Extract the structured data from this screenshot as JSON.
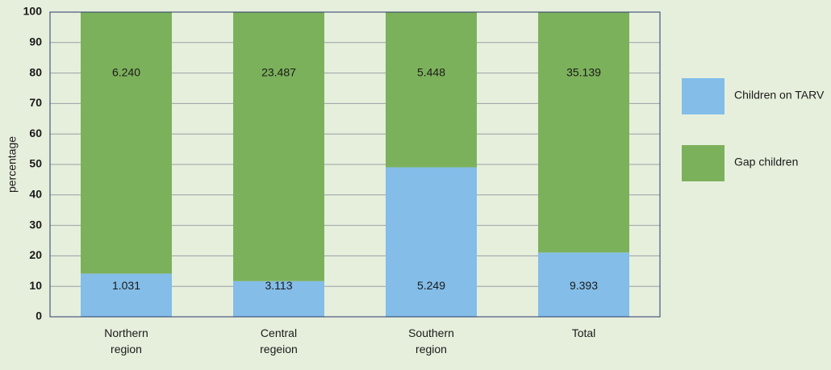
{
  "chart_data": {
    "type": "bar",
    "stacking": "percent",
    "y_label": "percentage",
    "categories": [
      "Northern region",
      "Central regeion",
      "Southern region",
      "Total"
    ],
    "series": [
      {
        "name": "Children on TARV",
        "color": "#83bde8",
        "values": [
          1031,
          3113,
          5249,
          9393
        ],
        "value_labels": [
          "1.031",
          "3.113",
          "5.249",
          "9.393"
        ]
      },
      {
        "name": "Gap children",
        "color": "#7cb15b",
        "values": [
          6240,
          23487,
          5448,
          35139
        ],
        "value_labels": [
          "6.240",
          "23.487",
          "5.448",
          "35.139"
        ]
      }
    ],
    "ylim": [
      0,
      100
    ],
    "yticks": [
      0,
      10,
      20,
      30,
      40,
      50,
      60,
      70,
      80,
      90,
      100
    ],
    "grid": true,
    "legend": "right"
  }
}
